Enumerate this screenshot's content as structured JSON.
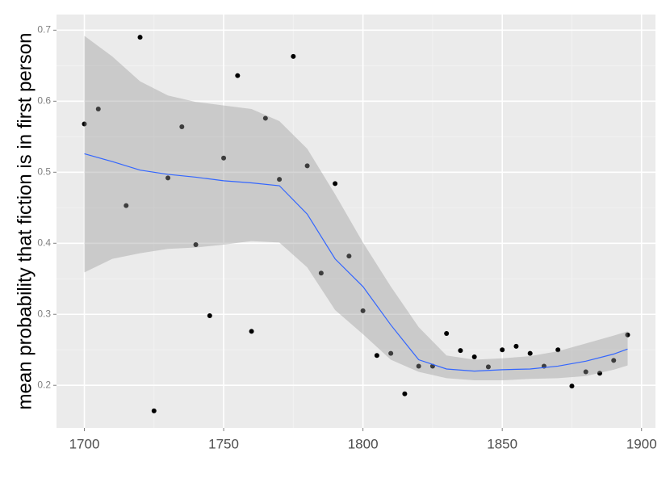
{
  "chart_data": {
    "type": "scatter",
    "y_label": "mean probability that fiction is in first person",
    "xlim": [
      1690,
      1905
    ],
    "ylim": [
      0.14,
      0.722
    ],
    "xticks": [
      1700,
      1750,
      1800,
      1850,
      1900
    ],
    "yticks": [
      0.2,
      0.3,
      0.4,
      0.5,
      0.6,
      0.7
    ],
    "grid": true,
    "color": "#000000",
    "x": [
      1700,
      1705,
      1715,
      1720,
      1725,
      1730,
      1735,
      1740,
      1745,
      1750,
      1755,
      1760,
      1765,
      1770,
      1775,
      1780,
      1785,
      1790,
      1795,
      1800,
      1805,
      1810,
      1815,
      1820,
      1825,
      1830,
      1835,
      1840,
      1845,
      1850,
      1855,
      1860,
      1865,
      1870,
      1875,
      1880,
      1885,
      1890,
      1895
    ],
    "values": [
      0.568,
      0.589,
      0.453,
      0.69,
      0.164,
      0.492,
      0.564,
      0.398,
      0.298,
      0.52,
      0.636,
      0.276,
      0.576,
      0.49,
      0.663,
      0.509,
      0.358,
      0.484,
      0.382,
      0.305,
      0.242,
      0.245,
      0.188,
      0.227,
      0.227,
      0.273,
      0.249,
      0.24,
      0.226,
      0.25,
      0.255,
      0.245,
      0.227,
      0.25,
      0.199,
      0.219,
      0.217,
      0.235,
      0.271
    ],
    "smooth": {
      "color": "#3366FF",
      "band_color": "#999999",
      "x": [
        1700,
        1710,
        1720,
        1730,
        1740,
        1750,
        1760,
        1770,
        1780,
        1790,
        1800,
        1810,
        1820,
        1830,
        1840,
        1850,
        1860,
        1870,
        1880,
        1890,
        1895
      ],
      "values": [
        0.526,
        0.515,
        0.503,
        0.497,
        0.493,
        0.488,
        0.485,
        0.481,
        0.441,
        0.378,
        0.339,
        0.285,
        0.236,
        0.223,
        0.22,
        0.222,
        0.223,
        0.227,
        0.234,
        0.244,
        0.251
      ],
      "upper": [
        0.692,
        0.663,
        0.628,
        0.608,
        0.599,
        0.594,
        0.589,
        0.572,
        0.533,
        0.469,
        0.401,
        0.339,
        0.282,
        0.242,
        0.236,
        0.238,
        0.241,
        0.248,
        0.259,
        0.27,
        0.276
      ],
      "lower": [
        0.359,
        0.378,
        0.386,
        0.392,
        0.394,
        0.398,
        0.403,
        0.401,
        0.366,
        0.306,
        0.272,
        0.236,
        0.219,
        0.21,
        0.207,
        0.207,
        0.209,
        0.21,
        0.213,
        0.222,
        0.228
      ]
    }
  }
}
